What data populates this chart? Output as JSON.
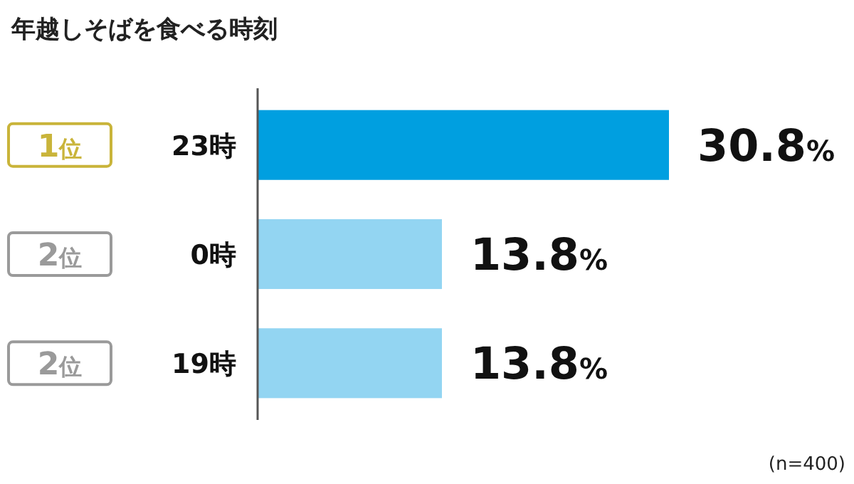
{
  "chart_data": {
    "type": "bar",
    "orientation": "horizontal",
    "title": "年越しそばを食べる時刻",
    "categories": [
      "23時",
      "0時",
      "19時"
    ],
    "values": [
      30.8,
      13.8,
      13.8
    ],
    "value_labels": [
      "30.8%",
      "13.8%",
      "13.8%"
    ],
    "colors": [
      "#009fe0",
      "#93d5f2",
      "#93d5f2"
    ],
    "annotations": [
      "1位",
      "2位",
      "2位",
      "(n=400)"
    ]
  }
}
